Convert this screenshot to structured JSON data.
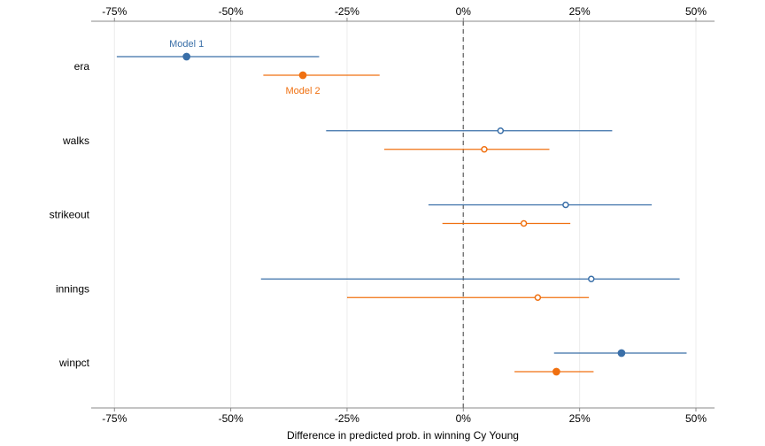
{
  "chart_data": {
    "type": "dot-whisker",
    "xlabel": "Difference in predicted prob. in winning Cy Young",
    "xticks": [
      "-75%",
      "-50%",
      "-25%",
      "0%",
      "25%",
      "50%"
    ],
    "xtick_values": [
      -75,
      -50,
      -25,
      0,
      25,
      50
    ],
    "xlim": [
      -80,
      54
    ],
    "reference_line": 0,
    "grid": "vertical",
    "categories": [
      "era",
      "walks",
      "strikeout",
      "innings",
      "winpct"
    ],
    "series": [
      {
        "name": "Model 1",
        "color": "#3a6fa8",
        "estimates": [
          -59.5,
          8,
          22,
          27.5,
          34
        ],
        "lower": [
          -74.5,
          -29.5,
          -7.5,
          -43.5,
          19.5
        ],
        "upper": [
          -31,
          32,
          40.5,
          46.5,
          48
        ],
        "significant": [
          true,
          false,
          false,
          false,
          true
        ]
      },
      {
        "name": "Model 2",
        "color": "#f07010",
        "estimates": [
          -34.5,
          4.5,
          13,
          16,
          20
        ],
        "lower": [
          -43,
          -17,
          -4.5,
          -25,
          11
        ],
        "upper": [
          -18,
          18.5,
          23,
          27,
          28
        ],
        "significant": [
          true,
          false,
          false,
          false,
          true
        ]
      }
    ],
    "annotations": [
      {
        "text": "Model 1",
        "series": 0,
        "category": "era",
        "position": "above"
      },
      {
        "text": "Model 2",
        "series": 1,
        "category": "era",
        "position": "below"
      }
    ]
  }
}
